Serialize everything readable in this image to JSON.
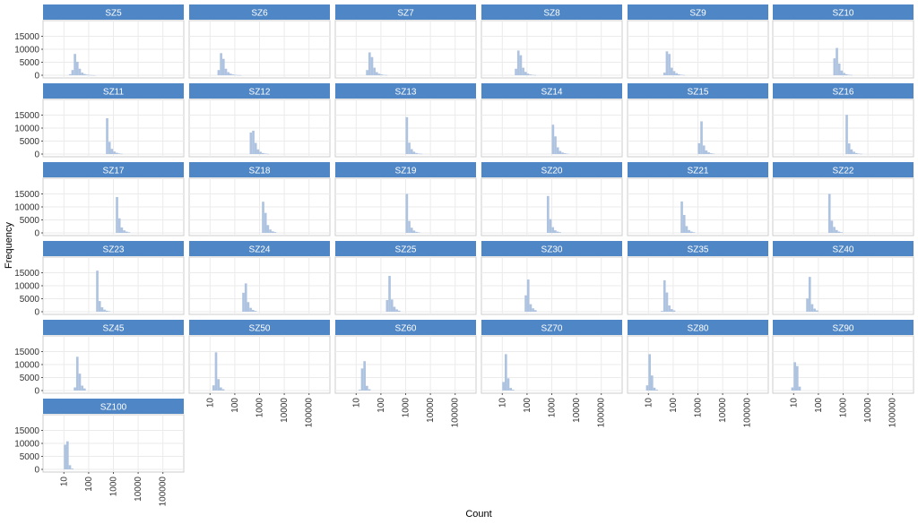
{
  "chart_data": {
    "type": "bar",
    "subtype": "faceted-histogram",
    "xlabel": "Count",
    "ylabel": "Frequency",
    "x_scale": "log10",
    "xlim": [
      2,
      500000
    ],
    "ylim": [
      0,
      20000
    ],
    "y_ticks": [
      0,
      5000,
      10000,
      15000
    ],
    "y_tick_labels": [
      "0",
      "5000",
      "10000",
      "15000"
    ],
    "x_ticks": [
      10,
      100,
      1000,
      10000,
      100000
    ],
    "x_tick_labels": [
      "10",
      "100",
      "1000",
      "10000",
      "100000"
    ],
    "grid": true,
    "colors": {
      "strip": "#4f86c6",
      "bar": "#aec3e0",
      "panel_border": "#cccccc",
      "grid": "#ebebeb"
    },
    "panels": [
      {
        "label": "SZ5",
        "bin_start": 16,
        "values": [
          400,
          2000,
          8200,
          5200,
          2500,
          1000,
          500,
          250,
          120,
          60,
          30
        ]
      },
      {
        "label": "SZ6",
        "bin_start": 20,
        "values": [
          2000,
          8500,
          6300,
          2500,
          1200,
          600,
          300,
          150,
          80,
          40
        ]
      },
      {
        "label": "SZ7",
        "bin_start": 25,
        "values": [
          2000,
          8800,
          7000,
          2900,
          1200,
          600,
          300,
          150,
          80
        ]
      },
      {
        "label": "SZ8",
        "bin_start": 32,
        "values": [
          2500,
          9500,
          7700,
          2900,
          1300,
          600,
          300,
          150,
          80
        ]
      },
      {
        "label": "SZ9",
        "bin_start": 40,
        "values": [
          1000,
          9200,
          8200,
          2900,
          1600,
          800,
          400,
          200,
          100
        ]
      },
      {
        "label": "SZ10",
        "bin_start": 400,
        "values": [
          6500,
          10500,
          4500,
          1800,
          900,
          400,
          200,
          100
        ]
      },
      {
        "label": "SZ11",
        "bin_start": 500,
        "values": [
          13800,
          4700,
          2000,
          1000,
          500,
          250,
          120
        ]
      },
      {
        "label": "SZ12",
        "bin_start": 400,
        "values": [
          8300,
          9000,
          4300,
          1800,
          900,
          400,
          200,
          100
        ]
      },
      {
        "label": "SZ13",
        "bin_start": 1000,
        "values": [
          14200,
          4400,
          1900,
          900,
          400,
          200,
          100
        ]
      },
      {
        "label": "SZ14",
        "bin_start": 1000,
        "values": [
          11300,
          6800,
          2600,
          1200,
          600,
          300,
          150
        ]
      },
      {
        "label": "SZ15",
        "bin_start": 1000,
        "values": [
          4200,
          12600,
          3300,
          1400,
          700,
          300,
          150
        ]
      },
      {
        "label": "SZ16",
        "bin_start": 1250,
        "values": [
          15100,
          4100,
          1800,
          900,
          400,
          200,
          100
        ]
      },
      {
        "label": "SZ17",
        "bin_start": 1250,
        "values": [
          13800,
          5600,
          2100,
          1000,
          500,
          250
        ]
      },
      {
        "label": "SZ18",
        "bin_start": 1250,
        "values": [
          12000,
          7700,
          3000,
          1300,
          600,
          300
        ]
      },
      {
        "label": "SZ19",
        "bin_start": 1000,
        "values": [
          15000,
          4600,
          2000,
          900,
          400,
          200
        ]
      },
      {
        "label": "SZ20",
        "bin_start": 630,
        "values": [
          14200,
          5300,
          2200,
          1000,
          500,
          250
        ]
      },
      {
        "label": "SZ21",
        "bin_start": 200,
        "values": [
          12100,
          6900,
          2600,
          1100,
          500,
          250
        ]
      },
      {
        "label": "SZ22",
        "bin_start": 250,
        "values": [
          15000,
          4700,
          2300,
          1100,
          500,
          250
        ]
      },
      {
        "label": "SZ23",
        "bin_start": 200,
        "values": [
          15800,
          4100,
          1700,
          800,
          400,
          200
        ]
      },
      {
        "label": "SZ24",
        "bin_start": 200,
        "values": [
          7300,
          10900,
          3700,
          1500,
          700,
          300
        ]
      },
      {
        "label": "SZ25",
        "bin_start": 160,
        "values": [
          4500,
          13800,
          4700,
          1900,
          900,
          400
        ]
      },
      {
        "label": "SZ30",
        "bin_start": 80,
        "values": [
          6300,
          12400,
          2900,
          1300,
          600
        ]
      },
      {
        "label": "SZ35",
        "bin_start": 32,
        "values": [
          300,
          12100,
          7400,
          2400,
          1000,
          500
        ]
      },
      {
        "label": "SZ40",
        "bin_start": 32,
        "values": [
          5100,
          13400,
          2900,
          1200,
          500
        ]
      },
      {
        "label": "SZ45",
        "bin_start": 25,
        "values": [
          1200,
          13000,
          6500,
          1900,
          800
        ]
      },
      {
        "label": "SZ50",
        "bin_start": 12.5,
        "values": [
          2000,
          14700,
          4400,
          1200,
          500
        ]
      },
      {
        "label": "SZ60",
        "bin_start": 12.5,
        "values": [
          300,
          8500,
          11300,
          1800,
          500
        ]
      },
      {
        "label": "SZ70",
        "bin_start": 10,
        "values": [
          3300,
          14000,
          4700,
          1000,
          300
        ]
      },
      {
        "label": "SZ80",
        "bin_start": 8,
        "values": [
          2000,
          14000,
          5800,
          1100,
          300
        ]
      },
      {
        "label": "SZ90",
        "bin_start": 8,
        "values": [
          1200,
          10900,
          9400,
          1500
        ]
      },
      {
        "label": "SZ100",
        "bin_start": 10,
        "values": [
          9500,
          10800,
          1600,
          300
        ]
      }
    ]
  }
}
